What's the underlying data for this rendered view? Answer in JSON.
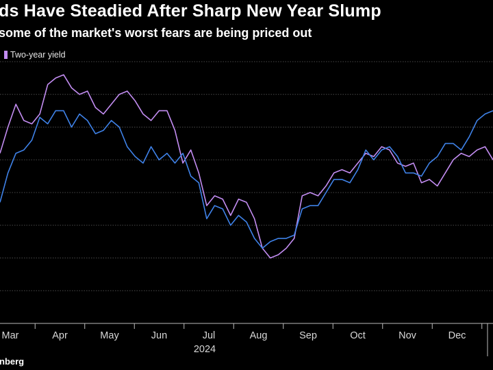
{
  "header": {
    "title": "ds Have Steadied After Sharp New Year Slump",
    "subtitle": "some of the market's worst fears are being priced out"
  },
  "legend": {
    "label": "Two-year yield"
  },
  "footer": {
    "source": "nberg"
  },
  "chart_data": {
    "type": "line",
    "title": "ds Have Steadied After Sharp New Year Slump",
    "subtitle": "some of the market's worst fears are being priced out",
    "x_tick_labels": [
      "Mar",
      "Apr",
      "May",
      "Jun",
      "Jul",
      "Aug",
      "Sep",
      "Oct",
      "Nov",
      "Dec"
    ],
    "year_label": "2024",
    "ylim": [
      0,
      8
    ],
    "grid": true,
    "legend_position": "top-left",
    "series": [
      {
        "name": "Two-year yield",
        "color": "#c38df2",
        "x": [
          0,
          5,
          10,
          15,
          20,
          25,
          30,
          35,
          40,
          45,
          50,
          55,
          60,
          65,
          70,
          75,
          80,
          85,
          90,
          95,
          100,
          105,
          110,
          115,
          120,
          125,
          130,
          135,
          140,
          145,
          150,
          155,
          160,
          165,
          170,
          175,
          180,
          185,
          190,
          195,
          200,
          205,
          210,
          215,
          220,
          225,
          230,
          235,
          240,
          245,
          250,
          255,
          260,
          265,
          270,
          275,
          280,
          285,
          290,
          295,
          300,
          305,
          310
        ],
        "values": [
          5.2,
          6.0,
          6.7,
          6.2,
          6.1,
          6.4,
          7.3,
          7.5,
          7.6,
          7.2,
          7.0,
          7.1,
          6.6,
          6.4,
          6.7,
          7.0,
          7.1,
          6.8,
          6.4,
          6.2,
          6.5,
          6.5,
          5.9,
          4.9,
          5.3,
          4.6,
          3.6,
          3.9,
          3.8,
          3.3,
          3.8,
          3.7,
          3.2,
          2.3,
          2.0,
          2.1,
          2.3,
          2.6,
          3.9,
          4.0,
          3.9,
          4.2,
          4.6,
          4.7,
          4.6,
          4.9,
          5.2,
          5.1,
          5.4,
          5.3,
          4.9,
          4.8,
          4.9,
          4.3,
          4.4,
          4.2,
          4.6,
          5.0,
          5.2,
          5.1,
          5.3,
          5.4,
          5.0
        ]
      },
      {
        "name": "",
        "color": "#3f82e8",
        "x": [
          0,
          5,
          10,
          15,
          20,
          25,
          30,
          35,
          40,
          45,
          50,
          55,
          60,
          65,
          70,
          75,
          80,
          85,
          90,
          95,
          100,
          105,
          110,
          115,
          120,
          125,
          130,
          135,
          140,
          145,
          150,
          155,
          160,
          165,
          170,
          175,
          180,
          185,
          190,
          195,
          200,
          205,
          210,
          215,
          220,
          225,
          230,
          235,
          240,
          245,
          250,
          255,
          260,
          265,
          270,
          275,
          280,
          285,
          290,
          295,
          300,
          305,
          310
        ],
        "values": [
          3.7,
          4.6,
          5.2,
          5.3,
          5.6,
          6.3,
          6.1,
          6.5,
          6.5,
          6.0,
          6.4,
          6.2,
          5.8,
          5.9,
          6.2,
          6.0,
          5.4,
          5.1,
          4.9,
          5.4,
          5.0,
          5.2,
          4.9,
          5.2,
          4.5,
          4.3,
          3.2,
          3.6,
          3.5,
          3.0,
          3.3,
          3.1,
          2.6,
          2.3,
          2.5,
          2.6,
          2.6,
          2.7,
          3.5,
          3.6,
          3.6,
          4.0,
          4.4,
          4.4,
          4.3,
          4.7,
          5.3,
          5.0,
          5.3,
          5.4,
          5.1,
          4.6,
          4.6,
          4.5,
          4.9,
          5.1,
          5.5,
          5.5,
          5.3,
          5.7,
          6.2,
          6.4,
          6.5
        ]
      }
    ]
  },
  "colors": {
    "background": "#000000",
    "grid": "#4a4a4a",
    "axis": "#bdbdbd",
    "text": "#ffffff"
  }
}
